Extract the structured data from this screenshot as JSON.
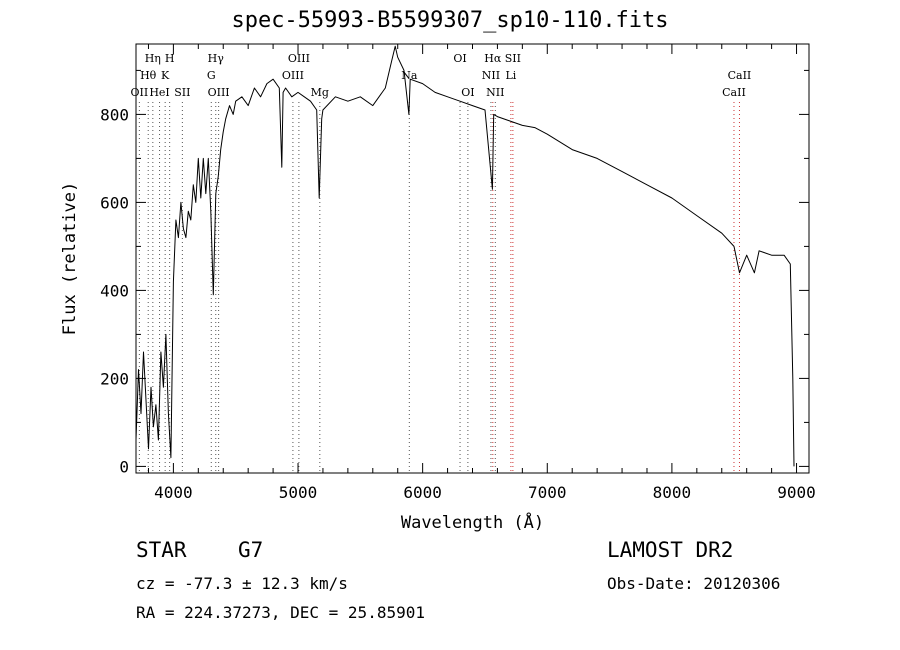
{
  "title": "spec-55993-B5599307_sp10-110.fits",
  "info": {
    "object_type": "STAR",
    "subclass": "G7",
    "survey": "LAMOST DR2",
    "cz": "cz = -77.3 ± 12.3 km/s",
    "obs_date": "Obs-Date: 20120306",
    "radec": "RA = 224.37273, DEC =  25.85901"
  },
  "chart_data": {
    "type": "line",
    "xlabel": "Wavelength (Å)",
    "ylabel": "Flux (relative)",
    "xlim": [
      3700,
      9100
    ],
    "ylim": [
      -15,
      960
    ],
    "x_ticks": [
      4000,
      5000,
      6000,
      7000,
      8000,
      9000
    ],
    "y_ticks": [
      0,
      200,
      400,
      600,
      800
    ],
    "x_minor_step": 200,
    "y_minor_step": 100,
    "series": [
      {
        "color": "#000000",
        "points": [
          [
            3700,
            60
          ],
          [
            3720,
            220
          ],
          [
            3740,
            120
          ],
          [
            3760,
            260
          ],
          [
            3780,
            150
          ],
          [
            3800,
            40
          ],
          [
            3820,
            180
          ],
          [
            3840,
            90
          ],
          [
            3860,
            140
          ],
          [
            3880,
            60
          ],
          [
            3900,
            260
          ],
          [
            3920,
            180
          ],
          [
            3940,
            300
          ],
          [
            3960,
            120
          ],
          [
            3980,
            20
          ],
          [
            4000,
            420
          ],
          [
            4020,
            560
          ],
          [
            4040,
            520
          ],
          [
            4060,
            600
          ],
          [
            4080,
            540
          ],
          [
            4100,
            520
          ],
          [
            4120,
            580
          ],
          [
            4140,
            560
          ],
          [
            4160,
            640
          ],
          [
            4180,
            600
          ],
          [
            4200,
            700
          ],
          [
            4220,
            610
          ],
          [
            4240,
            700
          ],
          [
            4260,
            620
          ],
          [
            4280,
            700
          ],
          [
            4300,
            580
          ],
          [
            4320,
            390
          ],
          [
            4340,
            620
          ],
          [
            4360,
            660
          ],
          [
            4380,
            720
          ],
          [
            4400,
            760
          ],
          [
            4420,
            790
          ],
          [
            4450,
            820
          ],
          [
            4480,
            800
          ],
          [
            4500,
            830
          ],
          [
            4550,
            840
          ],
          [
            4600,
            820
          ],
          [
            4650,
            860
          ],
          [
            4700,
            840
          ],
          [
            4750,
            870
          ],
          [
            4800,
            880
          ],
          [
            4850,
            860
          ],
          [
            4870,
            680
          ],
          [
            4880,
            850
          ],
          [
            4900,
            860
          ],
          [
            4950,
            840
          ],
          [
            5000,
            850
          ],
          [
            5050,
            840
          ],
          [
            5100,
            830
          ],
          [
            5150,
            810
          ],
          [
            5170,
            610
          ],
          [
            5190,
            790
          ],
          [
            5200,
            810
          ],
          [
            5300,
            840
          ],
          [
            5400,
            830
          ],
          [
            5500,
            840
          ],
          [
            5600,
            820
          ],
          [
            5700,
            860
          ],
          [
            5750,
            920
          ],
          [
            5780,
            955
          ],
          [
            5800,
            930
          ],
          [
            5850,
            900
          ],
          [
            5890,
            800
          ],
          [
            5900,
            880
          ],
          [
            6000,
            870
          ],
          [
            6100,
            850
          ],
          [
            6200,
            840
          ],
          [
            6300,
            830
          ],
          [
            6400,
            820
          ],
          [
            6500,
            810
          ],
          [
            6560,
            630
          ],
          [
            6570,
            800
          ],
          [
            6600,
            795
          ],
          [
            6700,
            785
          ],
          [
            6800,
            775
          ],
          [
            6900,
            770
          ],
          [
            7000,
            755
          ],
          [
            7200,
            720
          ],
          [
            7400,
            700
          ],
          [
            7600,
            670
          ],
          [
            7800,
            640
          ],
          [
            8000,
            610
          ],
          [
            8200,
            570
          ],
          [
            8400,
            530
          ],
          [
            8498,
            500
          ],
          [
            8542,
            440
          ],
          [
            8600,
            480
          ],
          [
            8662,
            440
          ],
          [
            8700,
            490
          ],
          [
            8800,
            480
          ],
          [
            8900,
            480
          ],
          [
            8950,
            460
          ],
          [
            8970,
            200
          ],
          [
            8980,
            0
          ]
        ]
      }
    ],
    "lines": [
      {
        "label": "Hη",
        "wave": 3835,
        "color": "#555555",
        "row": 1
      },
      {
        "label": "H",
        "wave": 3970,
        "color": "#555555",
        "row": 1
      },
      {
        "label": "Hθ",
        "wave": 3798,
        "color": "#555555",
        "row": 2
      },
      {
        "label": "K",
        "wave": 3934,
        "color": "#555555",
        "row": 2
      },
      {
        "label": "OII",
        "wave": 3727,
        "color": "#555555",
        "row": 3
      },
      {
        "label": "HeI",
        "wave": 3889,
        "color": "#555555",
        "row": 3
      },
      {
        "label": "SII",
        "wave": 4072,
        "color": "#555555",
        "row": 3
      },
      {
        "label": "Hγ",
        "wave": 4340,
        "color": "#555555",
        "row": 1
      },
      {
        "label": "G",
        "wave": 4304,
        "color": "#555555",
        "row": 2
      },
      {
        "label": "OIII",
        "wave": 4363,
        "color": "#555555",
        "row": 3
      },
      {
        "label": "OIII",
        "wave": 5007,
        "color": "#555555",
        "row": 1
      },
      {
        "label": "OIII",
        "wave": 4959,
        "color": "#555555",
        "row": 2
      },
      {
        "label": "Mg",
        "wave": 5175,
        "color": "#555555",
        "row": 3
      },
      {
        "label": "Na",
        "wave": 5893,
        "color": "#555555",
        "row": 2
      },
      {
        "label": "OI",
        "wave": 6300,
        "color": "#555555",
        "row": 1
      },
      {
        "label": "OI",
        "wave": 6363,
        "color": "#555555",
        "row": 3
      },
      {
        "label": "Hα",
        "wave": 6563,
        "color": "#cc3333",
        "row": 1
      },
      {
        "label": "SII",
        "wave": 6724,
        "color": "#cc3333",
        "row": 1
      },
      {
        "label": "NII",
        "wave": 6548,
        "color": "#555555",
        "row": 2
      },
      {
        "label": "Li",
        "wave": 6708,
        "color": "#cc3333",
        "row": 2
      },
      {
        "label": "NII",
        "wave": 6583,
        "color": "#555555",
        "row": 3
      },
      {
        "label": "CaII",
        "wave": 8542,
        "color": "#cc3333",
        "row": 2
      },
      {
        "label": "CaII",
        "wave": 8498,
        "color": "#cc3333",
        "row": 3
      }
    ]
  }
}
